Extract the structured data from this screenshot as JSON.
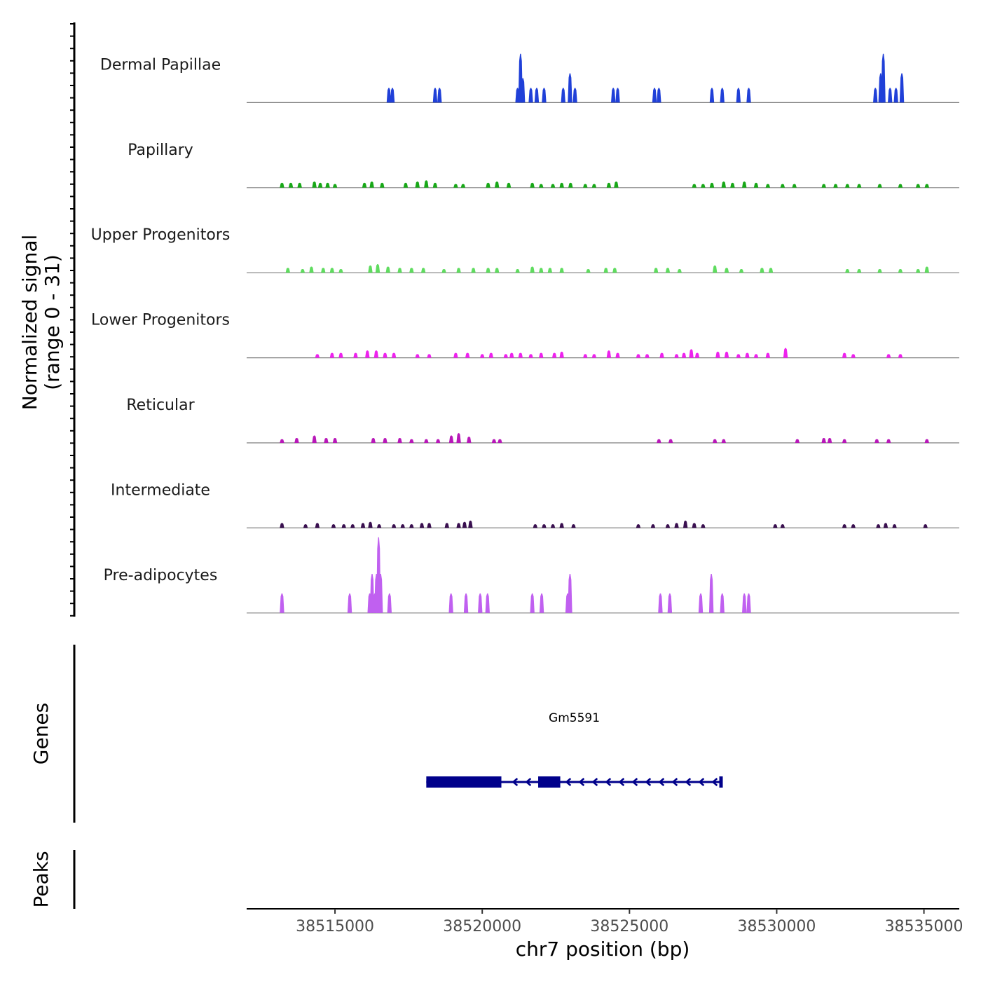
{
  "chart_data": {
    "type": "coverage",
    "chromosome": "chr7",
    "region": [
      38512000,
      38536200
    ],
    "xlabel": "chr7 position (bp)",
    "x_ticks": [
      38515000,
      38520000,
      38525000,
      38530000,
      38535000
    ],
    "x_tick_labels": [
      "38515000",
      "38520000",
      "38525000",
      "38530000",
      "38535000"
    ],
    "ylabel_line1": "Normalized signal",
    "ylabel_line2": "(range 0 - 31)",
    "y_range": [
      0,
      31
    ],
    "tracks": [
      {
        "name": "Dermal Papillae",
        "color": "#2040d8",
        "peaks": [
          [
            38516830,
            6
          ],
          [
            38516950,
            6
          ],
          [
            38518400,
            6
          ],
          [
            38518550,
            6
          ],
          [
            38521200,
            6
          ],
          [
            38521300,
            20
          ],
          [
            38521380,
            10
          ],
          [
            38521650,
            6
          ],
          [
            38521850,
            6
          ],
          [
            38522100,
            6
          ],
          [
            38522750,
            6
          ],
          [
            38522980,
            12
          ],
          [
            38523150,
            6
          ],
          [
            38524450,
            6
          ],
          [
            38524600,
            6
          ],
          [
            38525850,
            6
          ],
          [
            38526000,
            6
          ],
          [
            38527800,
            6
          ],
          [
            38528150,
            6
          ],
          [
            38528700,
            6
          ],
          [
            38529050,
            6
          ],
          [
            38533350,
            6
          ],
          [
            38533530,
            12
          ],
          [
            38533620,
            20
          ],
          [
            38533850,
            6
          ],
          [
            38534050,
            6
          ],
          [
            38534250,
            12
          ]
        ]
      },
      {
        "name": "Papillary",
        "color": "#18a818",
        "peaks": [
          [
            38513200,
            2
          ],
          [
            38513500,
            2
          ],
          [
            38513800,
            2
          ],
          [
            38514300,
            2.5
          ],
          [
            38514500,
            2
          ],
          [
            38514750,
            2
          ],
          [
            38515000,
            1.5
          ],
          [
            38516000,
            2
          ],
          [
            38516250,
            2.5
          ],
          [
            38516600,
            2
          ],
          [
            38517400,
            2
          ],
          [
            38517800,
            2.5
          ],
          [
            38518100,
            3
          ],
          [
            38518400,
            2
          ],
          [
            38519100,
            1.5
          ],
          [
            38519350,
            1.5
          ],
          [
            38520200,
            2
          ],
          [
            38520500,
            2.5
          ],
          [
            38520900,
            2
          ],
          [
            38521700,
            2
          ],
          [
            38522000,
            1.5
          ],
          [
            38522400,
            1.5
          ],
          [
            38522700,
            2
          ],
          [
            38523000,
            2
          ],
          [
            38523500,
            1.5
          ],
          [
            38523800,
            1.5
          ],
          [
            38524300,
            2
          ],
          [
            38524550,
            2.5
          ],
          [
            38527200,
            1.5
          ],
          [
            38527500,
            1.5
          ],
          [
            38527800,
            2
          ],
          [
            38528200,
            2.5
          ],
          [
            38528500,
            2
          ],
          [
            38528900,
            2.5
          ],
          [
            38529300,
            2
          ],
          [
            38529700,
            1.5
          ],
          [
            38530200,
            1.5
          ],
          [
            38530600,
            1.5
          ],
          [
            38531600,
            1.5
          ],
          [
            38532000,
            1.5
          ],
          [
            38532400,
            1.5
          ],
          [
            38532800,
            1.5
          ],
          [
            38533500,
            1.5
          ],
          [
            38534200,
            1.5
          ],
          [
            38534800,
            1.5
          ],
          [
            38535100,
            1.5
          ]
        ]
      },
      {
        "name": "Upper Progenitors",
        "color": "#5fdc5f",
        "peaks": [
          [
            38513400,
            2
          ],
          [
            38513900,
            1.5
          ],
          [
            38514200,
            2.5
          ],
          [
            38514600,
            2
          ],
          [
            38514900,
            2
          ],
          [
            38515200,
            1.5
          ],
          [
            38516200,
            3
          ],
          [
            38516450,
            3.5
          ],
          [
            38516800,
            2.5
          ],
          [
            38517200,
            2
          ],
          [
            38517600,
            2
          ],
          [
            38518000,
            2
          ],
          [
            38518700,
            1.5
          ],
          [
            38519200,
            2
          ],
          [
            38519700,
            2
          ],
          [
            38520200,
            2
          ],
          [
            38520500,
            2
          ],
          [
            38521200,
            1.5
          ],
          [
            38521700,
            2.5
          ],
          [
            38522000,
            2
          ],
          [
            38522300,
            2
          ],
          [
            38522700,
            2
          ],
          [
            38523600,
            1.5
          ],
          [
            38524200,
            2
          ],
          [
            38524500,
            2
          ],
          [
            38525900,
            2
          ],
          [
            38526300,
            2
          ],
          [
            38526700,
            1.5
          ],
          [
            38527900,
            3
          ],
          [
            38528300,
            2
          ],
          [
            38528800,
            1.5
          ],
          [
            38529500,
            2
          ],
          [
            38529800,
            2
          ],
          [
            38532400,
            1.5
          ],
          [
            38532800,
            1.5
          ],
          [
            38533500,
            1.5
          ],
          [
            38534200,
            1.5
          ],
          [
            38534800,
            1.5
          ],
          [
            38535100,
            2.5
          ]
        ]
      },
      {
        "name": "Lower Progenitors",
        "color": "#ee22ee",
        "peaks": [
          [
            38514400,
            1.5
          ],
          [
            38514900,
            2
          ],
          [
            38515200,
            2
          ],
          [
            38515700,
            2
          ],
          [
            38516100,
            3
          ],
          [
            38516400,
            3
          ],
          [
            38516700,
            2
          ],
          [
            38517000,
            2
          ],
          [
            38517800,
            1.5
          ],
          [
            38518200,
            1.5
          ],
          [
            38519100,
            2
          ],
          [
            38519500,
            2
          ],
          [
            38520000,
            1.5
          ],
          [
            38520300,
            2
          ],
          [
            38520800,
            1.5
          ],
          [
            38521000,
            2
          ],
          [
            38521300,
            2
          ],
          [
            38521650,
            1.5
          ],
          [
            38522000,
            2
          ],
          [
            38522450,
            2
          ],
          [
            38522700,
            2.5
          ],
          [
            38523500,
            1.5
          ],
          [
            38523800,
            1.5
          ],
          [
            38524300,
            3
          ],
          [
            38524600,
            2
          ],
          [
            38525300,
            1.5
          ],
          [
            38525600,
            1.5
          ],
          [
            38526100,
            2
          ],
          [
            38526600,
            1.5
          ],
          [
            38526850,
            2
          ],
          [
            38527100,
            3.5
          ],
          [
            38527300,
            2
          ],
          [
            38528000,
            2.5
          ],
          [
            38528300,
            2.5
          ],
          [
            38528700,
            1.5
          ],
          [
            38529000,
            2
          ],
          [
            38529300,
            1.5
          ],
          [
            38529700,
            2
          ],
          [
            38530300,
            4
          ],
          [
            38532300,
            2
          ],
          [
            38532600,
            1.5
          ],
          [
            38533800,
            1.5
          ],
          [
            38534200,
            1.5
          ]
        ]
      },
      {
        "name": "Reticular",
        "color": "#b818b8",
        "peaks": [
          [
            38513200,
            1.5
          ],
          [
            38513700,
            2
          ],
          [
            38514300,
            3
          ],
          [
            38514700,
            2
          ],
          [
            38515000,
            2
          ],
          [
            38516300,
            2
          ],
          [
            38516700,
            2
          ],
          [
            38517200,
            2
          ],
          [
            38517600,
            1.5
          ],
          [
            38518100,
            1.5
          ],
          [
            38518500,
            1.5
          ],
          [
            38518950,
            3
          ],
          [
            38519200,
            4
          ],
          [
            38519550,
            2.5
          ],
          [
            38520400,
            1.5
          ],
          [
            38520600,
            1.5
          ],
          [
            38526000,
            1.5
          ],
          [
            38526400,
            1.5
          ],
          [
            38527900,
            1.5
          ],
          [
            38528200,
            1.5
          ],
          [
            38530700,
            1.5
          ],
          [
            38531600,
            2
          ],
          [
            38531800,
            2
          ],
          [
            38532300,
            1.5
          ],
          [
            38533400,
            1.5
          ],
          [
            38533800,
            1.5
          ],
          [
            38535100,
            1.5
          ]
        ]
      },
      {
        "name": "Intermediate",
        "color": "#3a1050",
        "peaks": [
          [
            38513200,
            2
          ],
          [
            38514000,
            1.5
          ],
          [
            38514400,
            2
          ],
          [
            38514950,
            1.5
          ],
          [
            38515300,
            1.5
          ],
          [
            38515600,
            1.5
          ],
          [
            38515950,
            2
          ],
          [
            38516200,
            2.5
          ],
          [
            38516500,
            1.5
          ],
          [
            38517000,
            1.5
          ],
          [
            38517300,
            1.5
          ],
          [
            38517600,
            1.5
          ],
          [
            38517950,
            2
          ],
          [
            38518200,
            2
          ],
          [
            38518800,
            2
          ],
          [
            38519200,
            2
          ],
          [
            38519400,
            2.5
          ],
          [
            38519600,
            3
          ],
          [
            38521800,
            1.5
          ],
          [
            38522100,
            1.5
          ],
          [
            38522400,
            1.5
          ],
          [
            38522700,
            2
          ],
          [
            38523100,
            1.5
          ],
          [
            38525300,
            1.5
          ],
          [
            38525800,
            1.5
          ],
          [
            38526300,
            1.5
          ],
          [
            38526600,
            2
          ],
          [
            38526900,
            3
          ],
          [
            38527200,
            2
          ],
          [
            38527500,
            1.5
          ],
          [
            38529950,
            1.5
          ],
          [
            38530200,
            1.5
          ],
          [
            38532300,
            1.5
          ],
          [
            38532600,
            1.5
          ],
          [
            38533450,
            1.5
          ],
          [
            38533700,
            2
          ],
          [
            38534000,
            1.5
          ],
          [
            38535050,
            1.5
          ]
        ]
      },
      {
        "name": "Pre-adipocytes",
        "color": "#c060f0",
        "peaks": [
          [
            38513200,
            8
          ],
          [
            38515500,
            8
          ],
          [
            38516180,
            8
          ],
          [
            38516260,
            16
          ],
          [
            38516350,
            8
          ],
          [
            38516410,
            16
          ],
          [
            38516480,
            31
          ],
          [
            38516550,
            16
          ],
          [
            38516850,
            8
          ],
          [
            38518940,
            8
          ],
          [
            38519450,
            8
          ],
          [
            38519930,
            8
          ],
          [
            38520180,
            8
          ],
          [
            38521700,
            8
          ],
          [
            38522020,
            8
          ],
          [
            38522900,
            8
          ],
          [
            38522980,
            16
          ],
          [
            38526050,
            8
          ],
          [
            38526370,
            8
          ],
          [
            38527420,
            8
          ],
          [
            38527780,
            16
          ],
          [
            38528150,
            8
          ],
          [
            38528900,
            8
          ],
          [
            38529050,
            8
          ]
        ]
      }
    ],
    "gene": {
      "name": "Gm5591",
      "start": 38518100,
      "end": 38528150,
      "strand": "-",
      "exons": [
        [
          38518100,
          38520650
        ],
        [
          38521900,
          38522650
        ],
        [
          38528050,
          38528150
        ]
      ]
    },
    "section_labels": {
      "genes": "Genes",
      "peaks": "Peaks"
    }
  }
}
